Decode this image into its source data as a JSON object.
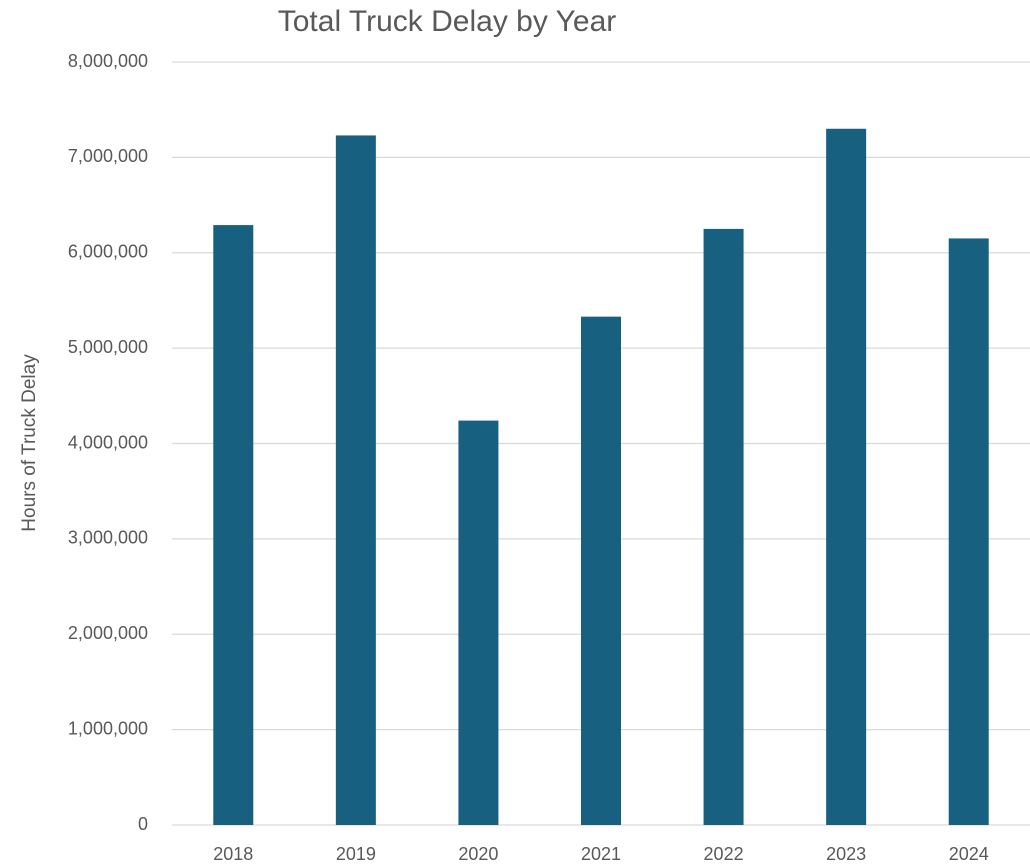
{
  "chart_data": {
    "type": "bar",
    "title": "Total Truck Delay by Year",
    "y_label": "Hours of Truck Delay",
    "categories": [
      "2018",
      "2019",
      "2020",
      "2021",
      "2022",
      "2023",
      "2024"
    ],
    "values": [
      6290000,
      7230000,
      4240000,
      5330000,
      6250000,
      7300000,
      6150000
    ],
    "color": "#17607f",
    "ylim": [
      0,
      8000000
    ],
    "yticks": [
      0,
      {
        "value": 1000000,
        "label": "1,000,000"
      },
      {
        "value": 2000000,
        "label": "2,000,000"
      },
      {
        "value": 3000000,
        "label": "3,000,000"
      },
      {
        "value": 4000000,
        "label": "4,000,000"
      },
      {
        "value": 5000000,
        "label": "5,000,000"
      },
      {
        "value": 6000000,
        "label": "6,000,000"
      },
      {
        "value": 7000000,
        "label": "7,000,000"
      },
      {
        "value": 8000000,
        "label": "8,000,000"
      }
    ],
    "grid": true
  }
}
